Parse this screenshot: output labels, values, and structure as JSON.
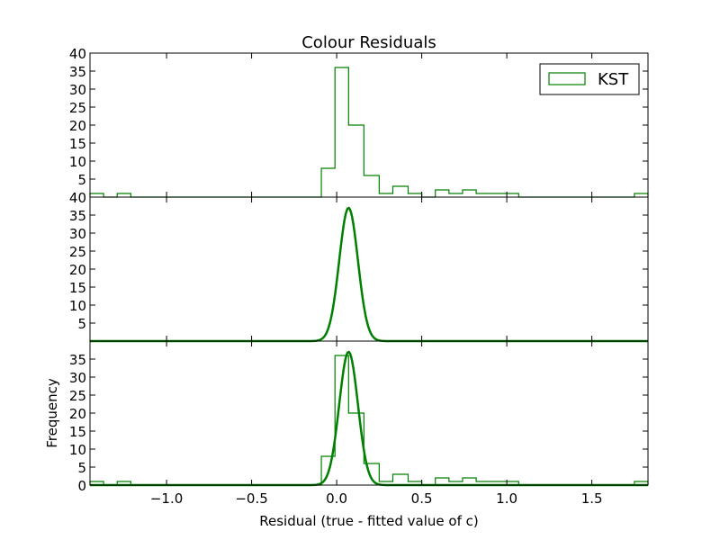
{
  "chart_data": {
    "type": "histogram",
    "title": "Colour Residuals",
    "xlabel": "Residual (true - fitted value of c)",
    "ylabel": "Frequency",
    "xlim": [
      -1.45,
      1.83
    ],
    "xticks": [
      {
        "value": -1.0,
        "label": "−1.0"
      },
      {
        "value": -0.5,
        "label": "−0.5"
      },
      {
        "value": 0.0,
        "label": "0.0"
      },
      {
        "value": 0.5,
        "label": "0.5"
      },
      {
        "value": 1.0,
        "label": "1.0"
      },
      {
        "value": 1.5,
        "label": "1.5"
      }
    ],
    "color": "#008000",
    "legend": {
      "label": "KST",
      "placement": "top-right"
    },
    "histogram": {
      "bin_edges": [
        -1.45,
        -1.37,
        -1.29,
        -1.21,
        -0.09,
        -0.01,
        0.07,
        0.16,
        0.25,
        0.33,
        0.42,
        0.5,
        0.58,
        0.66,
        0.74,
        0.82,
        0.9,
        0.99,
        1.07,
        1.75,
        1.83
      ],
      "counts": [
        1,
        0,
        1,
        0,
        8,
        36,
        20,
        6,
        1,
        3,
        1,
        0,
        2,
        1,
        2,
        1,
        1,
        1,
        0,
        1
      ]
    },
    "gaussian_fit": {
      "amplitude": 37,
      "mean": 0.07,
      "sigma": 0.055
    },
    "panels": [
      {
        "id": "histogram-panel",
        "content": [
          "histogram"
        ],
        "ylim": [
          0,
          40
        ],
        "yticks": [
          {
            "value": 5,
            "label": "5"
          },
          {
            "value": 10,
            "label": "10"
          },
          {
            "value": 15,
            "label": "15"
          },
          {
            "value": 20,
            "label": "20"
          },
          {
            "value": 25,
            "label": "25"
          },
          {
            "value": 30,
            "label": "30"
          },
          {
            "value": 35,
            "label": "35"
          },
          {
            "value": 40,
            "label": "40"
          }
        ],
        "show_title": true,
        "show_legend": true,
        "show_xticks": false
      },
      {
        "id": "fit-panel",
        "content": [
          "fit"
        ],
        "ylim": [
          0,
          40
        ],
        "yticks": [
          {
            "value": 5,
            "label": "5"
          },
          {
            "value": 10,
            "label": "10"
          },
          {
            "value": 15,
            "label": "15"
          },
          {
            "value": 20,
            "label": "20"
          },
          {
            "value": 25,
            "label": "25"
          },
          {
            "value": 30,
            "label": "30"
          },
          {
            "value": 35,
            "label": "35"
          },
          {
            "value": 40,
            "label": "40"
          }
        ],
        "show_xticks": false
      },
      {
        "id": "combined-panel",
        "content": [
          "histogram",
          "fit"
        ],
        "ylim": [
          0,
          40
        ],
        "yticks": [
          {
            "value": 0,
            "label": "0"
          },
          {
            "value": 5,
            "label": "5"
          },
          {
            "value": 10,
            "label": "10"
          },
          {
            "value": 15,
            "label": "15"
          },
          {
            "value": 20,
            "label": "20"
          },
          {
            "value": 25,
            "label": "25"
          },
          {
            "value": 30,
            "label": "30"
          },
          {
            "value": 35,
            "label": "35"
          }
        ],
        "show_ylabel": true,
        "show_xticks": true,
        "show_xlabel": true
      }
    ]
  }
}
